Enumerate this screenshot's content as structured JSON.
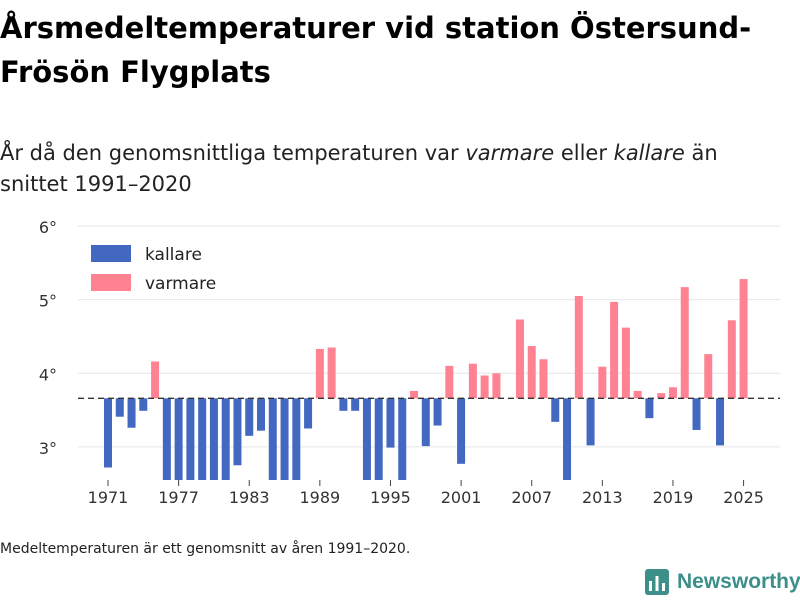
{
  "title": "Årsmedeltemperaturer vid station Östersund-Frösön Flygplats",
  "subtitle": {
    "part1": "År då den genomsnittliga temperaturen var ",
    "em1": "varmare",
    "part2": " eller ",
    "em2": "kallare",
    "part3": " än snittet 1991–2020"
  },
  "footnote": "Medeltemperaturen är ett genomsnitt av åren 1991–2020.",
  "brand": {
    "name": "Newsworthy",
    "icon": "newsworthy-logo-icon"
  },
  "colors": {
    "colder": "#4268c2",
    "warmer": "#ff8292",
    "grid": "#e6e6e6",
    "reference": "#333333"
  },
  "chart_data": {
    "type": "bar",
    "title": "Årsmedeltemperaturer vid station Östersund-Frösön Flygplats",
    "xlabel": "",
    "ylabel": "",
    "baseline": 3.66,
    "ylim": [
      2.55,
      6.15
    ],
    "yticks": [
      3,
      4,
      5,
      6
    ],
    "ytick_labels": [
      "3°",
      "4°",
      "5°",
      "6°"
    ],
    "xticks": [
      1971,
      1977,
      1983,
      1989,
      1995,
      2001,
      2007,
      2013,
      2019,
      2025
    ],
    "legend": [
      {
        "key": "colder",
        "label": "kallare"
      },
      {
        "key": "warmer",
        "label": "varmare"
      }
    ],
    "legend_position": "top-left",
    "years": [
      1971,
      1972,
      1973,
      1974,
      1975,
      1976,
      1977,
      1978,
      1979,
      1980,
      1981,
      1982,
      1983,
      1984,
      1985,
      1986,
      1987,
      1988,
      1989,
      1990,
      1991,
      1992,
      1993,
      1994,
      1995,
      1996,
      1997,
      1998,
      1999,
      2000,
      2001,
      2002,
      2003,
      2004,
      2005,
      2006,
      2007,
      2008,
      2009,
      2010,
      2011,
      2012,
      2013,
      2014,
      2015,
      2016,
      2017,
      2018,
      2019,
      2020,
      2021,
      2022,
      2023,
      2024,
      2025
    ],
    "values": [
      2.72,
      3.41,
      3.26,
      3.49,
      4.16,
      2.55,
      2.55,
      2.55,
      2.55,
      2.55,
      2.55,
      2.75,
      3.15,
      3.22,
      2.55,
      2.55,
      2.55,
      3.25,
      4.33,
      4.35,
      3.49,
      3.49,
      2.55,
      2.55,
      2.99,
      2.55,
      3.76,
      3.01,
      3.29,
      4.1,
      2.77,
      4.13,
      3.97,
      4.0,
      null,
      4.73,
      4.37,
      4.19,
      3.34,
      2.55,
      5.05,
      3.02,
      4.09,
      4.97,
      4.62,
      3.76,
      3.39,
      3.73,
      3.81,
      5.17,
      3.23,
      4.26,
      3.02,
      4.72,
      5.28
    ]
  }
}
